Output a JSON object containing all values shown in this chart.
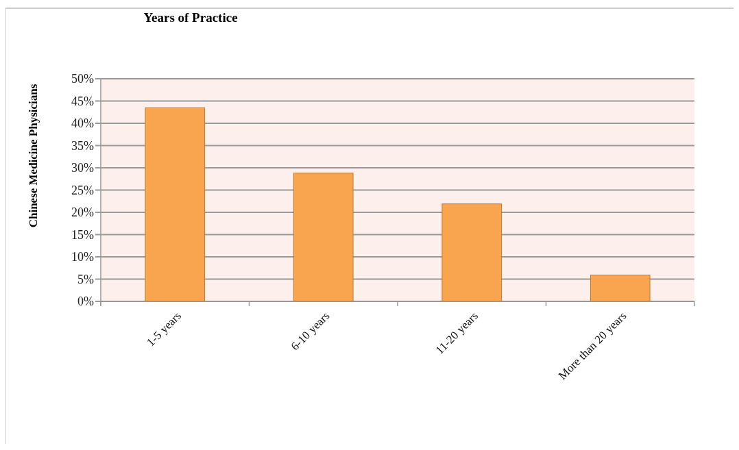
{
  "chart_data": {
    "type": "bar",
    "title": "Years of Practice",
    "ylabel": "Chinese Medicine Physicians",
    "categories": [
      "1-5 years",
      "6-10 years",
      "11-20 years",
      "More than 20 years"
    ],
    "values": [
      43.5,
      28.8,
      21.9,
      5.9
    ],
    "color": "#f9a54f",
    "ylim": [
      0,
      50
    ],
    "yticks": [
      {
        "value": 0,
        "label": "0%"
      },
      {
        "value": 5,
        "label": "5%"
      },
      {
        "value": 10,
        "label": "10%"
      },
      {
        "value": 15,
        "label": "15%"
      },
      {
        "value": 20,
        "label": "20%"
      },
      {
        "value": 25,
        "label": "25%"
      },
      {
        "value": 30,
        "label": "30%"
      },
      {
        "value": 35,
        "label": "35%"
      },
      {
        "value": 40,
        "label": "40%"
      },
      {
        "value": 45,
        "label": "45%"
      },
      {
        "value": 50,
        "label": "50%"
      }
    ],
    "grid": "y"
  }
}
